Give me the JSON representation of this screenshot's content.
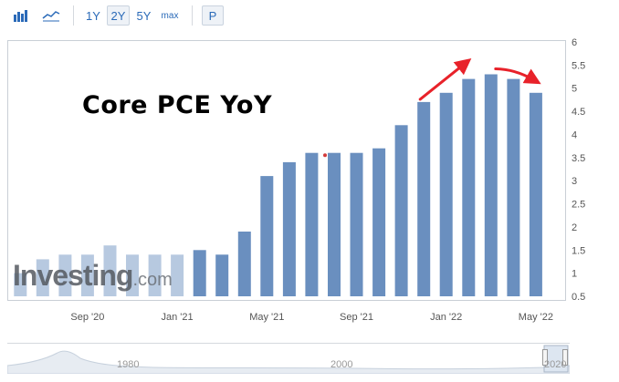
{
  "toolbar": {
    "icons": [
      "bar-chart-icon",
      "area-chart-icon"
    ],
    "range_buttons": [
      "1Y",
      "2Y",
      "5Y",
      "max"
    ],
    "selected_range": "2Y",
    "p_button": "P"
  },
  "overlay": {
    "title": "Core PCE YoY",
    "watermark_main": "Investing",
    "watermark_suffix": ".com"
  },
  "colors": {
    "bar": "#6a8fbf",
    "bar_faded": "#b7c9e0",
    "arrow": "#e8222a",
    "marker": "#d23a3a"
  },
  "navigator": {
    "labels": [
      "1980",
      "2000",
      "2020"
    ]
  },
  "chart_data": {
    "type": "bar",
    "title": "Core PCE YoY",
    "categories": [
      "Jun '20",
      "Jul '20",
      "Aug '20",
      "Sep '20",
      "Oct '20",
      "Nov '20",
      "Dec '20",
      "Jan '21",
      "Feb '21",
      "Mar '21",
      "Apr '21",
      "May '21",
      "Jun '21",
      "Jul '21",
      "Aug '21",
      "Sep '21",
      "Oct '21",
      "Nov '21",
      "Dec '21",
      "Jan '22",
      "Feb '22",
      "Mar '22",
      "Apr '22",
      "May '22"
    ],
    "values": [
      1.0,
      1.3,
      1.4,
      1.4,
      1.6,
      1.4,
      1.4,
      1.4,
      1.5,
      1.4,
      1.9,
      3.1,
      3.4,
      3.6,
      3.6,
      3.6,
      3.7,
      4.2,
      4.7,
      4.9,
      5.2,
      5.3,
      5.2,
      4.9
    ],
    "x_tick_labels": [
      "Sep '20",
      "Jan '21",
      "May '21",
      "Sep '21",
      "Jan '22",
      "May '22"
    ],
    "x_tick_categories": [
      "Sep '20",
      "Jan '21",
      "May '21",
      "Sep '21",
      "Jan '22",
      "May '22"
    ],
    "y_ticks": [
      0.5,
      1,
      1.5,
      2,
      2.5,
      3,
      3.5,
      4,
      4.5,
      5,
      5.5,
      6
    ],
    "ylim": [
      0.5,
      6
    ],
    "y_axis_position": "right",
    "grid": false,
    "annotations": [
      {
        "type": "arrow",
        "direction": "up",
        "from": "Dec '21",
        "to": "Feb '22"
      },
      {
        "type": "arrow",
        "direction": "down",
        "from": "Mar '22",
        "to": "May '22"
      }
    ],
    "marker": {
      "category": "Aug '21",
      "value": 3.55
    }
  }
}
